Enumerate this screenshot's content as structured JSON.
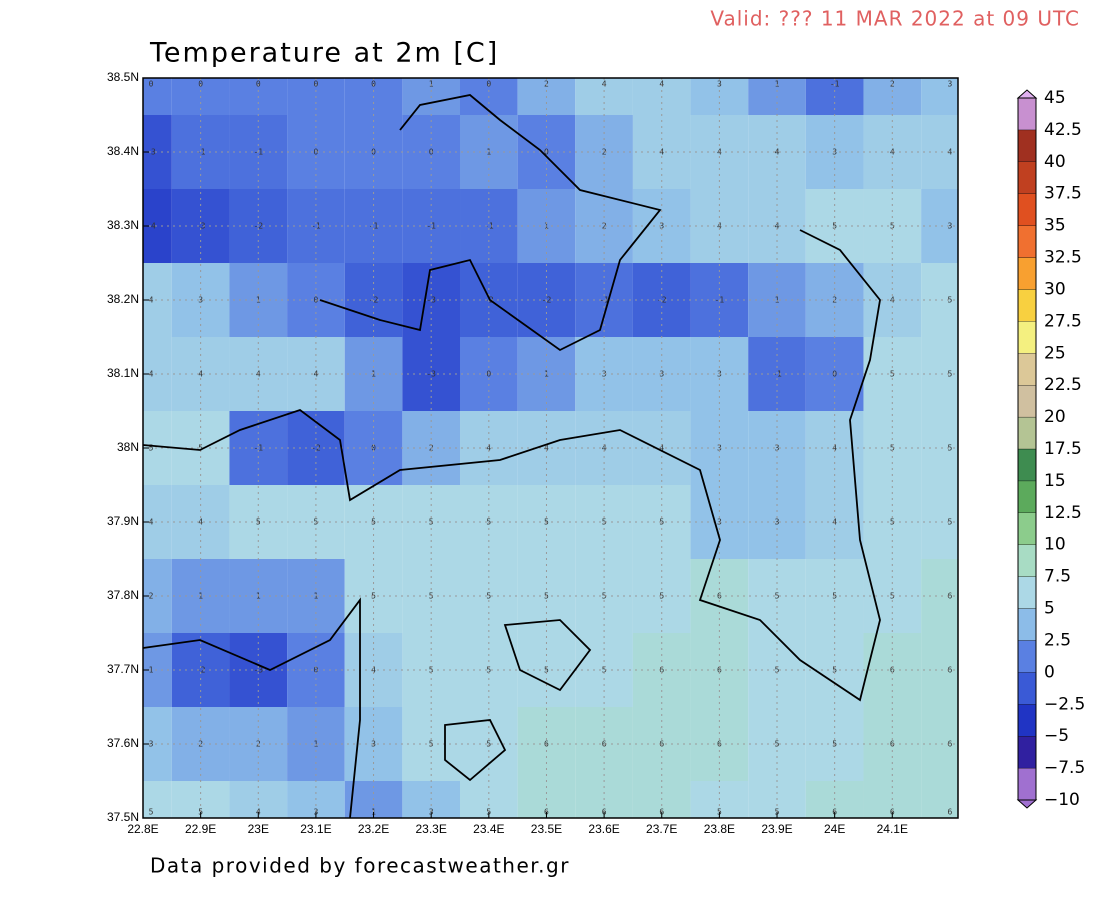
{
  "chart_data": {
    "type": "field",
    "title": "Temperature at 2m [C]",
    "valid": "Valid: ??? 11 MAR 2022 at 09 UTC",
    "footer": "Data provided by forecastweather.gr",
    "lon": [
      22.8,
      22.9,
      23.0,
      23.1,
      23.2,
      23.3,
      23.4,
      23.5,
      23.6,
      23.7,
      23.8,
      23.9,
      24.0,
      24.1,
      24.2
    ],
    "lat": [
      38.5,
      38.4,
      38.3,
      38.2,
      38.1,
      38.0,
      37.9,
      37.8,
      37.7,
      37.6,
      37.5
    ],
    "values": [
      [
        0,
        0,
        0,
        0,
        0,
        1,
        0,
        2,
        4,
        4,
        3,
        1,
        -1,
        2,
        3
      ],
      [
        -3,
        -1,
        -1,
        0,
        0,
        0,
        1,
        0,
        2,
        4,
        4,
        4,
        3,
        4,
        4
      ],
      [
        -4,
        -3,
        -2,
        -1,
        -1,
        -1,
        -1,
        1,
        2,
        3,
        4,
        4,
        5,
        5,
        3
      ],
      [
        4,
        3,
        1,
        0,
        -2,
        -3,
        -2,
        -2,
        -1,
        -2,
        -1,
        1,
        2,
        4,
        5
      ],
      [
        4,
        4,
        4,
        4,
        1,
        -3,
        0,
        1,
        3,
        3,
        3,
        -1,
        0,
        5,
        5
      ],
      [
        5,
        5,
        -1,
        -2,
        0,
        2,
        4,
        4,
        4,
        4,
        3,
        3,
        4,
        5,
        5
      ],
      [
        4,
        4,
        5,
        5,
        5,
        5,
        5,
        5,
        5,
        5,
        3,
        3,
        4,
        5,
        5
      ],
      [
        2,
        1,
        1,
        1,
        5,
        5,
        5,
        5,
        5,
        5,
        6,
        5,
        5,
        5,
        6
      ],
      [
        1,
        -2,
        -3,
        0,
        4,
        5,
        5,
        5,
        5,
        6,
        6,
        5,
        5,
        6,
        6
      ],
      [
        3,
        2,
        2,
        1,
        3,
        5,
        5,
        6,
        6,
        6,
        6,
        5,
        5,
        6,
        6
      ],
      [
        5,
        5,
        4,
        3,
        1,
        3,
        5,
        6,
        6,
        6,
        5,
        5,
        6,
        6,
        6
      ]
    ],
    "xlim": [
      22.8,
      24.214
    ],
    "ylim": [
      37.5,
      38.5
    ],
    "xticks": [
      {
        "value": 22.8,
        "label": "22.8E"
      },
      {
        "value": 22.9,
        "label": "22.9E"
      },
      {
        "value": 23.0,
        "label": "23E"
      },
      {
        "value": 23.1,
        "label": "23.1E"
      },
      {
        "value": 23.2,
        "label": "23.2E"
      },
      {
        "value": 23.3,
        "label": "23.3E"
      },
      {
        "value": 23.4,
        "label": "23.4E"
      },
      {
        "value": 23.5,
        "label": "23.5E"
      },
      {
        "value": 23.6,
        "label": "23.6E"
      },
      {
        "value": 23.7,
        "label": "23.7E"
      },
      {
        "value": 23.8,
        "label": "23.8E"
      },
      {
        "value": 23.9,
        "label": "23.9E"
      },
      {
        "value": 24.0,
        "label": "24E"
      },
      {
        "value": 24.1,
        "label": "24.1E"
      }
    ],
    "yticks": [
      {
        "value": 37.5,
        "label": "37.5N"
      },
      {
        "value": 37.6,
        "label": "37.6N"
      },
      {
        "value": 37.7,
        "label": "37.7N"
      },
      {
        "value": 37.8,
        "label": "37.8N"
      },
      {
        "value": 37.9,
        "label": "37.9N"
      },
      {
        "value": 38.0,
        "label": "38N"
      },
      {
        "value": 38.1,
        "label": "38.1N"
      },
      {
        "value": 38.2,
        "label": "38.2N"
      },
      {
        "value": 38.3,
        "label": "38.3N"
      },
      {
        "value": 38.4,
        "label": "38.4N"
      },
      {
        "value": 38.5,
        "label": "38.5N"
      }
    ],
    "grid": true,
    "colorbar": {
      "lim": [
        -10,
        45
      ],
      "ticks": [
        {
          "value": -10,
          "label": "−10"
        },
        {
          "value": -7.5,
          "label": "−7.5"
        },
        {
          "value": -5,
          "label": "−5"
        },
        {
          "value": -2.5,
          "label": "−2.5"
        },
        0,
        2.5,
        5,
        7.5,
        10,
        12.5,
        15,
        17.5,
        20,
        22.5,
        25,
        27.5,
        30,
        32.5,
        35,
        37.5,
        40,
        42.5,
        45
      ],
      "colors": [
        "#a070d0",
        "#3020a0",
        "#2034c4",
        "#3a5ad6",
        "#5a80e2",
        "#8cbce8",
        "#acd8e6",
        "#a8dcc4",
        "#8ccc8c",
        "#5caa5c",
        "#3e8c50",
        "#b4c494",
        "#d0c0a0",
        "#dcc898",
        "#f4f080",
        "#f8d040",
        "#f8a030",
        "#f07030",
        "#e05020",
        "#c04020",
        "#a03020",
        "#c890d0",
        "#e0b0f0"
      ]
    }
  }
}
